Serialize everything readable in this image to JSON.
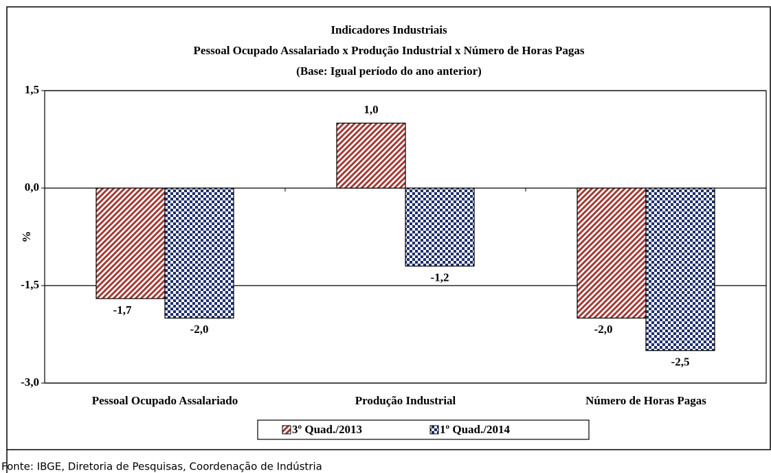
{
  "chart_data": {
    "type": "bar",
    "title": [
      "Indicadores Industriais",
      "Pessoal Ocupado  Assalariado x Produção Industrial x Número de Horas Pagas",
      "(Base: Igual período do ano anterior)"
    ],
    "y_label": "%",
    "categories": [
      "Pessoal Ocupado Assalariado",
      "Produção Industrial",
      "Número de Horas Pagas"
    ],
    "series": [
      {
        "name": "3º Quad./2013",
        "color": "#a33b36",
        "pattern": "hatch",
        "values": [
          -1.7,
          1.0,
          -2.0
        ],
        "value_labels": [
          "-1,7",
          "1,0",
          "-2,0"
        ]
      },
      {
        "name": "1º Quad./2014",
        "color": "#1f2f6e",
        "pattern": "check",
        "values": [
          -2.0,
          -1.2,
          -2.5
        ],
        "value_labels": [
          "-2,0",
          "-1,2",
          "-2,5"
        ]
      }
    ],
    "ylim": [
      -3.0,
      1.5
    ],
    "yticks": [
      {
        "value": -3.0,
        "label": "-3,0"
      },
      {
        "value": -1.5,
        "label": "-1,5"
      },
      {
        "value": 0,
        "label": "0,0"
      },
      {
        "value": 1.5,
        "label": "1,5"
      }
    ],
    "grid": true,
    "source": "Fonte: IBGE, Diretoria de Pesquisas, Coordenação de Indústria"
  }
}
